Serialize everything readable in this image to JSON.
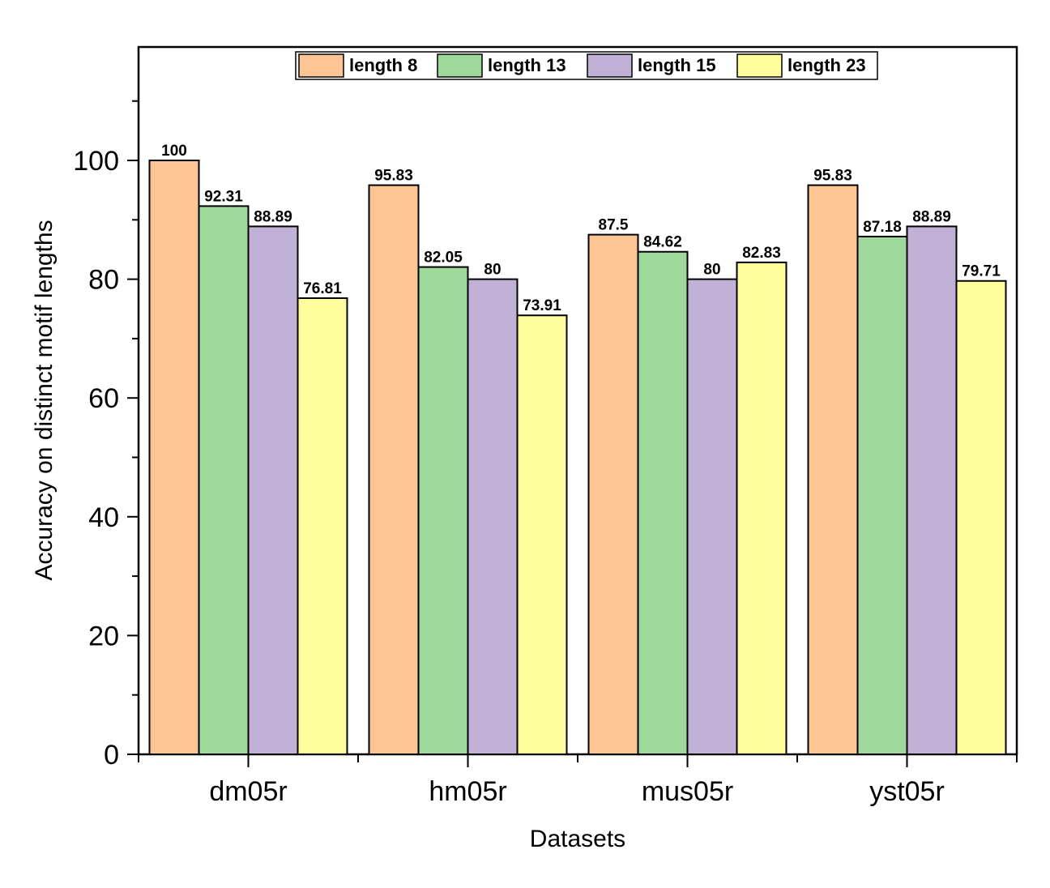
{
  "chart_data": {
    "type": "bar",
    "categories": [
      "dm05r",
      "hm05r",
      "mus05r",
      "yst05r"
    ],
    "series": [
      {
        "name": "length 8",
        "color": "#FDC593",
        "values": [
          100,
          95.83,
          87.5,
          95.83
        ],
        "labels": [
          "100",
          "95.83",
          "87.5",
          "95.83"
        ]
      },
      {
        "name": "length 13",
        "color": "#9ED89B",
        "values": [
          92.31,
          82.05,
          84.62,
          87.18
        ],
        "labels": [
          "92.31",
          "82.05",
          "84.62",
          "87.18"
        ]
      },
      {
        "name": "length 15",
        "color": "#C2B1D6",
        "values": [
          88.89,
          80,
          80,
          88.89
        ],
        "labels": [
          "88.89",
          "80",
          "80",
          "88.89"
        ]
      },
      {
        "name": "length 23",
        "color": "#FFFD9C",
        "values": [
          76.81,
          73.91,
          82.83,
          79.71
        ],
        "labels": [
          "76.81",
          "73.91",
          "82.83",
          "79.71"
        ]
      }
    ],
    "xlabel": "Datasets",
    "ylabel": "Accuracy on distinct motif lengths",
    "ylim": [
      0,
      120
    ],
    "yticks": [
      "0",
      "20",
      "40",
      "60",
      "80",
      "100"
    ],
    "grid": false,
    "legend_position": "top-center"
  }
}
